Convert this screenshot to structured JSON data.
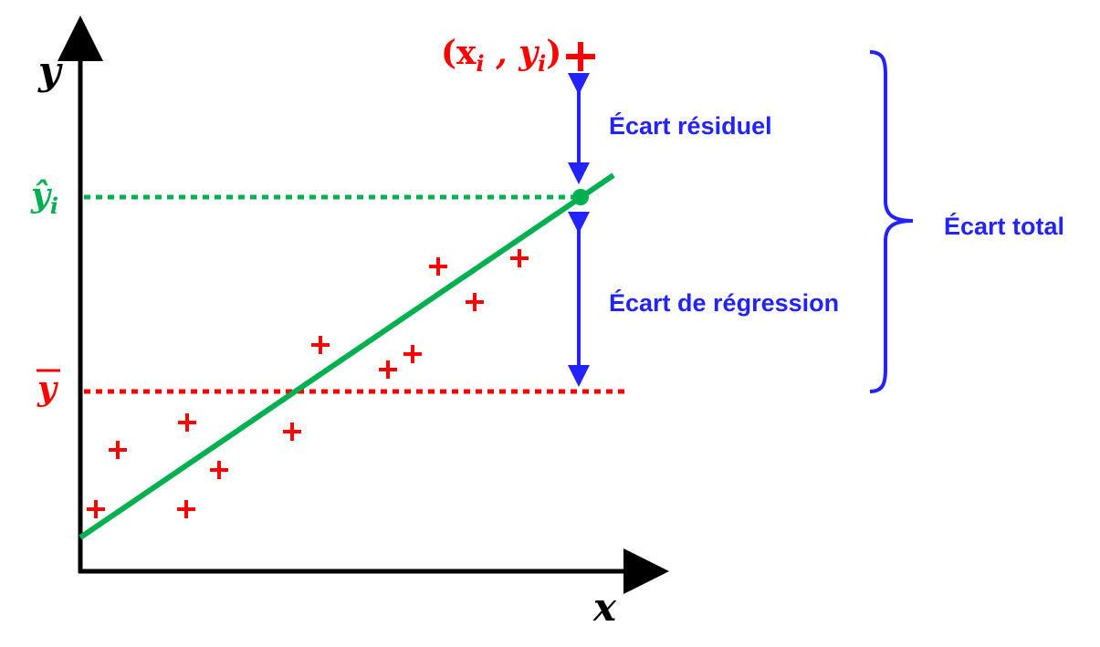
{
  "axes": {
    "x_label": "x",
    "y_label": "y"
  },
  "labels": {
    "point": "(x",
    "point_sub_i": "i",
    "point_sep": " , y",
    "point_sub_i2": "i",
    "point_close": ")",
    "y_hat": "ŷ",
    "y_hat_sub": "i",
    "y_bar": "y",
    "residual": "Écart résiduel",
    "regression": "Écart de régression",
    "total": "Écart total"
  },
  "colors": {
    "axis": "#000000",
    "points": "#ff0000",
    "regression_line": "#00b050",
    "mean_line": "#ff0000",
    "arrows": "#2323ff",
    "brace": "#2323ff"
  },
  "icons": {
    "point_marker": "plus-icon",
    "fitted_marker": "dot-icon"
  }
}
